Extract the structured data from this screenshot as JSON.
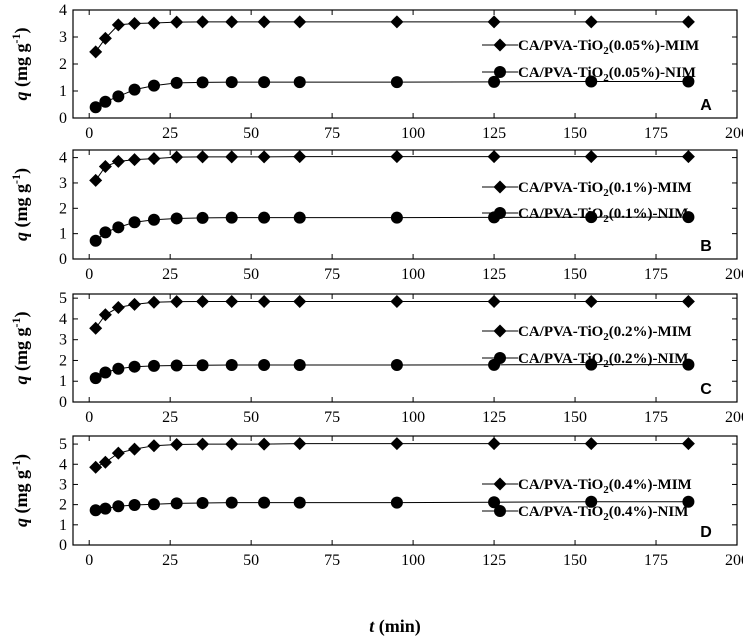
{
  "figure": {
    "xlabel_var": "t",
    "xlabel_unit": " (min)",
    "ylabel_var": "q",
    "ylabel_unit_pre": " (mg g",
    "ylabel_sup": "-1",
    "ylabel_unit_post": ")"
  },
  "chart_data": [
    {
      "type": "line",
      "panel": "A",
      "xlim": [
        -5,
        200
      ],
      "ylim": [
        0,
        4
      ],
      "xticks": [
        0,
        25,
        50,
        75,
        100,
        125,
        150,
        175,
        200
      ],
      "yticks": [
        0,
        1,
        2,
        3,
        4
      ],
      "legend_position": "right",
      "x": [
        2,
        5,
        9,
        14,
        20,
        27,
        35,
        44,
        54,
        65,
        95,
        125,
        155,
        185
      ],
      "series": [
        {
          "name_pre": "CA/PVA-TiO",
          "name_sub": "2",
          "name_post": "(0.05%)-MIM",
          "marker": "diamond",
          "values": [
            2.45,
            2.95,
            3.45,
            3.5,
            3.52,
            3.55,
            3.56,
            3.56,
            3.56,
            3.56,
            3.56,
            3.56,
            3.56,
            3.56
          ]
        },
        {
          "name_pre": "CA/PVA-TiO",
          "name_sub": "2",
          "name_post": "(0.05%)-NIM",
          "marker": "circle",
          "values": [
            0.4,
            0.6,
            0.8,
            1.05,
            1.2,
            1.3,
            1.32,
            1.33,
            1.33,
            1.33,
            1.33,
            1.34,
            1.35,
            1.35
          ]
        }
      ]
    },
    {
      "type": "line",
      "panel": "B",
      "xlim": [
        -5,
        200
      ],
      "ylim": [
        0,
        4.3
      ],
      "xticks": [
        0,
        25,
        50,
        75,
        100,
        125,
        150,
        175,
        200
      ],
      "yticks": [
        0,
        1,
        2,
        3,
        4
      ],
      "legend_position": "right",
      "x": [
        2,
        5,
        9,
        14,
        20,
        27,
        35,
        44,
        54,
        65,
        95,
        125,
        155,
        185
      ],
      "series": [
        {
          "name_pre": "CA/PVA-TiO",
          "name_sub": "2",
          "name_post": "(0.1%)-MIM",
          "marker": "diamond",
          "values": [
            3.1,
            3.65,
            3.85,
            3.92,
            3.96,
            4.02,
            4.03,
            4.03,
            4.03,
            4.04,
            4.04,
            4.04,
            4.04,
            4.04
          ]
        },
        {
          "name_pre": "CA/PVA-TiO",
          "name_sub": "2",
          "name_post": "(0.1%)-NIM",
          "marker": "circle",
          "values": [
            0.72,
            1.05,
            1.25,
            1.45,
            1.55,
            1.6,
            1.62,
            1.63,
            1.63,
            1.63,
            1.63,
            1.64,
            1.65,
            1.65
          ]
        }
      ]
    },
    {
      "type": "line",
      "panel": "C",
      "xlim": [
        -5,
        200
      ],
      "ylim": [
        0,
        5.2
      ],
      "xticks": [
        0,
        25,
        50,
        75,
        100,
        125,
        150,
        175,
        200
      ],
      "yticks": [
        0,
        1,
        2,
        3,
        4,
        5
      ],
      "legend_position": "right",
      "x": [
        2,
        5,
        9,
        14,
        20,
        27,
        35,
        44,
        54,
        65,
        95,
        125,
        155,
        185
      ],
      "series": [
        {
          "name_pre": "CA/PVA-TiO",
          "name_sub": "2",
          "name_post": "(0.2%)-MIM",
          "marker": "diamond",
          "values": [
            3.55,
            4.2,
            4.55,
            4.7,
            4.8,
            4.83,
            4.84,
            4.84,
            4.84,
            4.84,
            4.84,
            4.84,
            4.84,
            4.84
          ]
        },
        {
          "name_pre": "CA/PVA-TiO",
          "name_sub": "2",
          "name_post": "(0.2%)-NIM",
          "marker": "circle",
          "values": [
            1.15,
            1.42,
            1.6,
            1.7,
            1.74,
            1.76,
            1.77,
            1.78,
            1.78,
            1.78,
            1.78,
            1.79,
            1.8,
            1.8
          ]
        }
      ]
    },
    {
      "type": "line",
      "panel": "D",
      "xlim": [
        -5,
        200
      ],
      "ylim": [
        0,
        5.4
      ],
      "xticks": [
        0,
        25,
        50,
        75,
        100,
        125,
        150,
        175,
        200
      ],
      "yticks": [
        0,
        1,
        2,
        3,
        4,
        5
      ],
      "legend_position": "right",
      "x": [
        2,
        5,
        9,
        14,
        20,
        27,
        35,
        44,
        54,
        65,
        95,
        125,
        155,
        185
      ],
      "series": [
        {
          "name_pre": "CA/PVA-TiO",
          "name_sub": "2",
          "name_post": "(0.4%)-MIM",
          "marker": "diamond",
          "values": [
            3.85,
            4.1,
            4.55,
            4.75,
            4.92,
            4.98,
            5.0,
            5.0,
            5.0,
            5.02,
            5.02,
            5.02,
            5.02,
            5.02
          ]
        },
        {
          "name_pre": "CA/PVA-TiO",
          "name_sub": "2",
          "name_post": "(0.4%)-NIM",
          "marker": "circle",
          "values": [
            1.72,
            1.8,
            1.92,
            1.98,
            2.02,
            2.06,
            2.08,
            2.1,
            2.1,
            2.1,
            2.1,
            2.12,
            2.14,
            2.14
          ]
        }
      ]
    }
  ]
}
